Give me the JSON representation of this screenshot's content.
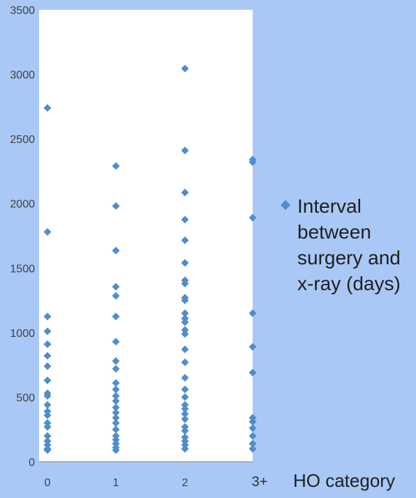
{
  "chart_data": {
    "type": "scatter",
    "title": "",
    "xlabel": "HO category",
    "ylabel": "",
    "ylim": [
      0,
      3500
    ],
    "yticks": [
      0,
      500,
      1000,
      1500,
      2000,
      2500,
      3000,
      3500
    ],
    "categories": [
      "0",
      "1",
      "2",
      "3+"
    ],
    "legend_position": "right",
    "grid": false,
    "color": "#4f8ec9",
    "series": [
      {
        "name": "Interval between surgery and x-ray (days)",
        "legend_lines": [
          "Interval",
          "between",
          "surgery and",
          "x-ray (days)"
        ],
        "points": [
          {
            "x": "0",
            "y": 2740
          },
          {
            "x": "0",
            "y": 1780
          },
          {
            "x": "0",
            "y": 1125
          },
          {
            "x": "0",
            "y": 1010
          },
          {
            "x": "0",
            "y": 910
          },
          {
            "x": "0",
            "y": 820
          },
          {
            "x": "0",
            "y": 740
          },
          {
            "x": "0",
            "y": 630
          },
          {
            "x": "0",
            "y": 530
          },
          {
            "x": "0",
            "y": 510
          },
          {
            "x": "0",
            "y": 440
          },
          {
            "x": "0",
            "y": 390
          },
          {
            "x": "0",
            "y": 360
          },
          {
            "x": "0",
            "y": 300
          },
          {
            "x": "0",
            "y": 270
          },
          {
            "x": "0",
            "y": 200
          },
          {
            "x": "0",
            "y": 160
          },
          {
            "x": "0",
            "y": 130
          },
          {
            "x": "0",
            "y": 100
          },
          {
            "x": "0",
            "y": 90
          },
          {
            "x": "1",
            "y": 2290
          },
          {
            "x": "1",
            "y": 1980
          },
          {
            "x": "1",
            "y": 1635
          },
          {
            "x": "1",
            "y": 1355
          },
          {
            "x": "1",
            "y": 1285
          },
          {
            "x": "1",
            "y": 1125
          },
          {
            "x": "1",
            "y": 930
          },
          {
            "x": "1",
            "y": 780
          },
          {
            "x": "1",
            "y": 720
          },
          {
            "x": "1",
            "y": 610
          },
          {
            "x": "1",
            "y": 560
          },
          {
            "x": "1",
            "y": 510
          },
          {
            "x": "1",
            "y": 470
          },
          {
            "x": "1",
            "y": 420
          },
          {
            "x": "1",
            "y": 380
          },
          {
            "x": "1",
            "y": 340
          },
          {
            "x": "1",
            "y": 300
          },
          {
            "x": "1",
            "y": 250
          },
          {
            "x": "1",
            "y": 200
          },
          {
            "x": "1",
            "y": 170
          },
          {
            "x": "1",
            "y": 140
          },
          {
            "x": "1",
            "y": 110
          },
          {
            "x": "1",
            "y": 90
          },
          {
            "x": "2",
            "y": 3045
          },
          {
            "x": "2",
            "y": 2410
          },
          {
            "x": "2",
            "y": 2085
          },
          {
            "x": "2",
            "y": 1875
          },
          {
            "x": "2",
            "y": 1715
          },
          {
            "x": "2",
            "y": 1540
          },
          {
            "x": "2",
            "y": 1405
          },
          {
            "x": "2",
            "y": 1380
          },
          {
            "x": "2",
            "y": 1270
          },
          {
            "x": "2",
            "y": 1250
          },
          {
            "x": "2",
            "y": 1150
          },
          {
            "x": "2",
            "y": 1110
          },
          {
            "x": "2",
            "y": 1080
          },
          {
            "x": "2",
            "y": 1020
          },
          {
            "x": "2",
            "y": 990
          },
          {
            "x": "2",
            "y": 870
          },
          {
            "x": "2",
            "y": 770
          },
          {
            "x": "2",
            "y": 650
          },
          {
            "x": "2",
            "y": 560
          },
          {
            "x": "2",
            "y": 500
          },
          {
            "x": "2",
            "y": 440
          },
          {
            "x": "2",
            "y": 410
          },
          {
            "x": "2",
            "y": 370
          },
          {
            "x": "2",
            "y": 330
          },
          {
            "x": "2",
            "y": 270
          },
          {
            "x": "2",
            "y": 240
          },
          {
            "x": "2",
            "y": 190
          },
          {
            "x": "2",
            "y": 160
          },
          {
            "x": "2",
            "y": 130
          },
          {
            "x": "2",
            "y": 100
          },
          {
            "x": "3+",
            "y": 2340
          },
          {
            "x": "3+",
            "y": 2320
          },
          {
            "x": "3+",
            "y": 1890
          },
          {
            "x": "3+",
            "y": 1150
          },
          {
            "x": "3+",
            "y": 890
          },
          {
            "x": "3+",
            "y": 690
          },
          {
            "x": "3+",
            "y": 340
          },
          {
            "x": "3+",
            "y": 310
          },
          {
            "x": "3+",
            "y": 260
          },
          {
            "x": "3+",
            "y": 200
          },
          {
            "x": "3+",
            "y": 140
          },
          {
            "x": "3+",
            "y": 100
          }
        ]
      }
    ]
  }
}
